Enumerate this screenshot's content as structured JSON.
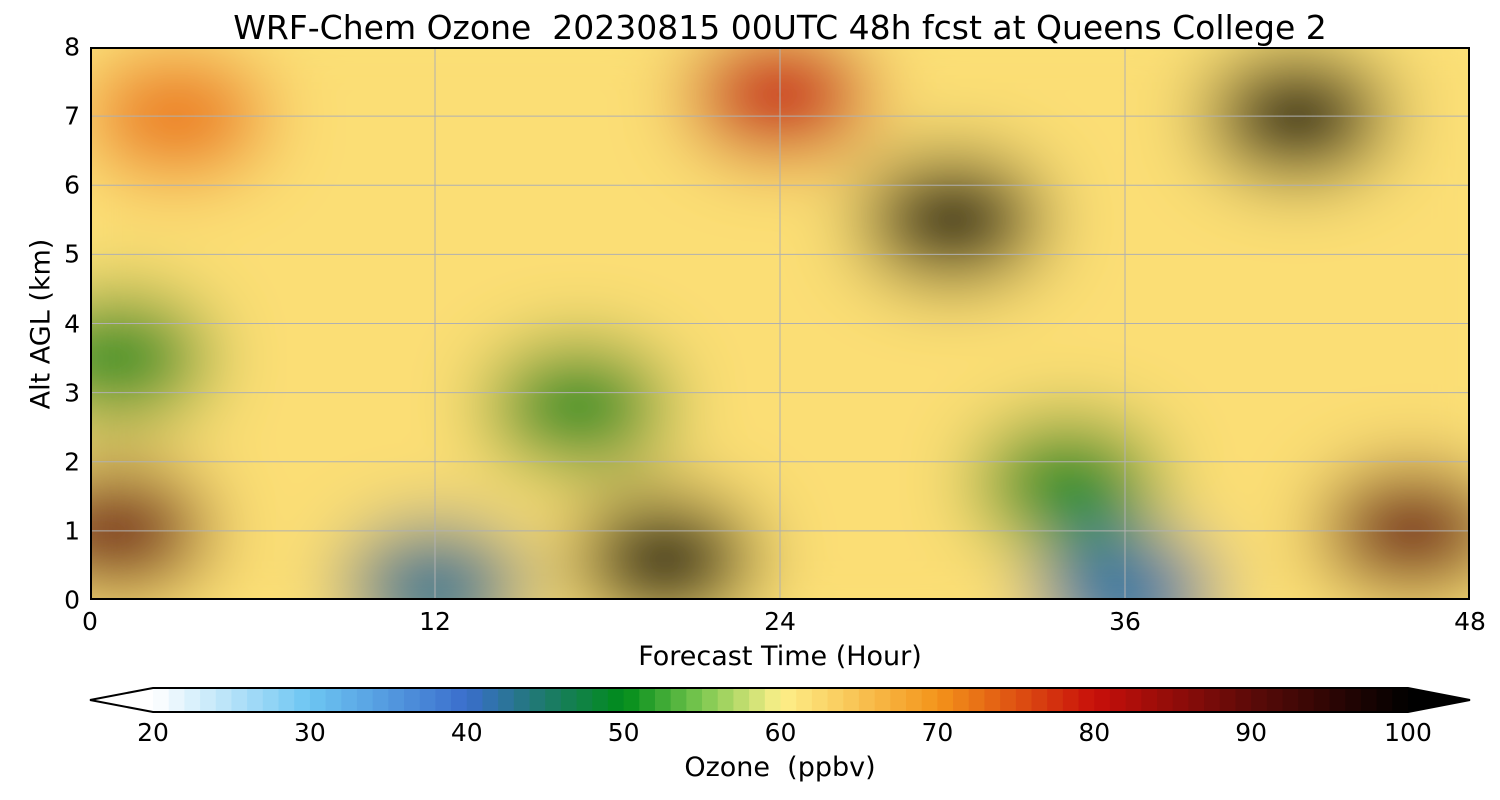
{
  "chart_data": {
    "type": "heatmap",
    "title": "WRF-Chem Ozone  20230815 00UTC 48h fcst at Queens College 2",
    "xlabel": "Forecast Time (Hour)",
    "ylabel": "Alt AGL (km)",
    "xlim": [
      0,
      48
    ],
    "ylim": [
      0,
      8
    ],
    "x_ticks": [
      "0",
      "12",
      "24",
      "36",
      "48"
    ],
    "y_ticks": [
      "0",
      "1",
      "2",
      "3",
      "4",
      "5",
      "6",
      "7",
      "8"
    ],
    "grid": true,
    "colorbar": {
      "label": "Ozone  (ppbv)",
      "range": [
        20,
        100
      ],
      "ticks": [
        "20",
        "30",
        "40",
        "50",
        "60",
        "70",
        "80",
        "90",
        "100"
      ],
      "extend": "both",
      "colors": {
        "20": "#ffffff",
        "30": "#6cc5f2",
        "40": "#3a6ecc",
        "45": "#1d7a6a",
        "50": "#008c1a",
        "55": "#7cc850",
        "60": "#fdf08a",
        "70": "#f4941a",
        "80": "#c80f0a",
        "90": "#5c0a08",
        "100": "#000000"
      }
    },
    "features": [
      {
        "x": 1,
        "y": 1.0,
        "value": 88
      },
      {
        "x": 1,
        "y": 3.5,
        "value": 50
      },
      {
        "x": 3,
        "y": 7.0,
        "value": 72
      },
      {
        "x": 12,
        "y": 0.2,
        "value": 43
      },
      {
        "x": 17,
        "y": 2.8,
        "value": 50
      },
      {
        "x": 20,
        "y": 0.6,
        "value": 100
      },
      {
        "x": 24,
        "y": 7.3,
        "value": 80
      },
      {
        "x": 30,
        "y": 5.5,
        "value": 100
      },
      {
        "x": 34,
        "y": 1.7,
        "value": 50
      },
      {
        "x": 36,
        "y": 0.1,
        "value": 42
      },
      {
        "x": 42,
        "y": 7.0,
        "value": 100
      },
      {
        "x": 46,
        "y": 1.0,
        "value": 88
      }
    ]
  }
}
